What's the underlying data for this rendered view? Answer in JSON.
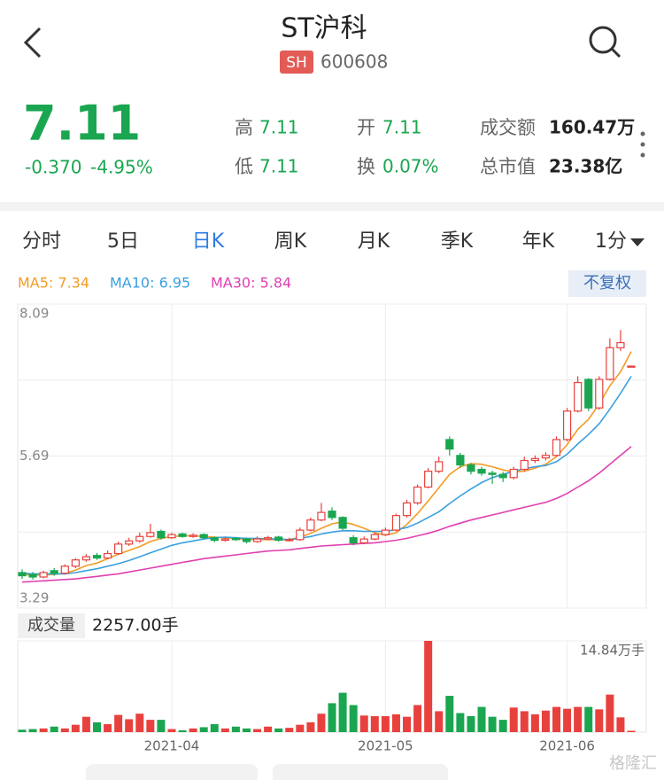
{
  "header": {
    "title": "ST沪科",
    "exchange": "SH",
    "code": "600608"
  },
  "quote": {
    "price": "7.11",
    "change": "-0.370",
    "change_pct": "-4.95%",
    "stats": [
      {
        "label": "高",
        "value": "7.11"
      },
      {
        "label": "开",
        "value": "7.11"
      },
      {
        "label": "成交额",
        "value": "160.47万"
      },
      {
        "label": "低",
        "value": "7.11"
      },
      {
        "label": "换",
        "value": "0.07%"
      },
      {
        "label": "总市值",
        "value": "23.38亿"
      }
    ]
  },
  "tabs": [
    "分时",
    "5日",
    "日K",
    "周K",
    "月K",
    "季K",
    "年K",
    "1分"
  ],
  "adjust": "不复权",
  "volume_label": "成交量",
  "volume_value": "2257.00手",
  "watermark": "格隆汇",
  "chart_data": [
    {
      "type": "candlestick",
      "categories": [
        null,
        null,
        null,
        null,
        null,
        null,
        null,
        null,
        null,
        null,
        null,
        null,
        null,
        null,
        "2021-04",
        null,
        null,
        null,
        null,
        null,
        null,
        null,
        null,
        null,
        null,
        null,
        null,
        null,
        null,
        null,
        null,
        null,
        null,
        null,
        "2021-05",
        null,
        null,
        null,
        null,
        null,
        null,
        null,
        null,
        null,
        null,
        null,
        null,
        null,
        null,
        null,
        null,
        "2021-06",
        null,
        null,
        null,
        null,
        null,
        null
      ],
      "open": [
        3.85,
        3.82,
        3.78,
        3.88,
        3.84,
        3.95,
        4.05,
        4.12,
        4.08,
        4.15,
        4.3,
        4.35,
        4.42,
        4.5,
        4.4,
        4.46,
        4.42,
        4.45,
        4.4,
        4.36,
        4.39,
        4.38,
        4.34,
        4.38,
        4.41,
        4.36,
        4.37,
        4.52,
        4.68,
        4.82,
        4.72,
        4.4,
        4.32,
        4.38,
        4.45,
        4.52,
        4.75,
        4.95,
        5.2,
        5.45,
        5.95,
        5.7,
        5.55,
        5.48,
        5.42,
        5.4,
        5.35,
        5.48,
        5.62,
        5.66,
        5.7,
        5.95,
        6.4,
        6.9,
        6.45,
        6.9,
        7.4,
        7.11
      ],
      "high": [
        3.9,
        3.86,
        3.88,
        3.92,
        3.98,
        4.08,
        4.14,
        4.16,
        4.2,
        4.34,
        4.4,
        4.48,
        4.62,
        4.53,
        4.48,
        4.48,
        4.47,
        4.47,
        4.42,
        4.41,
        4.41,
        4.4,
        4.42,
        4.43,
        4.43,
        4.4,
        4.56,
        4.72,
        4.95,
        4.88,
        4.74,
        4.44,
        4.42,
        4.48,
        4.56,
        4.78,
        5.0,
        5.24,
        5.5,
        5.68,
        6.0,
        5.74,
        5.58,
        5.52,
        5.46,
        5.44,
        5.52,
        5.68,
        5.7,
        5.75,
        6.0,
        6.45,
        6.95,
        6.92,
        6.95,
        7.55,
        7.68,
        7.11
      ],
      "low": [
        3.75,
        3.74,
        3.76,
        3.8,
        3.82,
        3.92,
        4.02,
        4.05,
        4.06,
        4.13,
        4.27,
        4.32,
        4.4,
        4.37,
        4.38,
        4.4,
        4.4,
        4.37,
        4.33,
        4.34,
        4.35,
        4.31,
        4.32,
        4.36,
        4.34,
        4.34,
        4.35,
        4.5,
        4.66,
        4.68,
        4.52,
        4.28,
        4.3,
        4.36,
        4.43,
        4.5,
        4.72,
        4.92,
        5.18,
        5.42,
        5.7,
        5.5,
        5.4,
        5.38,
        5.25,
        5.28,
        5.32,
        5.45,
        5.58,
        5.62,
        5.68,
        5.92,
        6.38,
        6.4,
        6.42,
        6.88,
        7.35,
        7.11
      ],
      "close": [
        3.8,
        3.78,
        3.85,
        3.84,
        3.95,
        4.05,
        4.1,
        4.08,
        4.15,
        4.3,
        4.35,
        4.42,
        4.48,
        4.4,
        4.45,
        4.42,
        4.44,
        4.4,
        4.36,
        4.38,
        4.37,
        4.34,
        4.38,
        4.4,
        4.36,
        4.37,
        4.52,
        4.68,
        4.8,
        4.72,
        4.55,
        4.32,
        4.38,
        4.45,
        4.52,
        4.75,
        4.95,
        5.2,
        5.45,
        5.6,
        5.8,
        5.55,
        5.45,
        5.42,
        5.4,
        5.35,
        5.48,
        5.62,
        5.65,
        5.7,
        5.95,
        6.4,
        6.85,
        6.45,
        6.9,
        7.4,
        7.48,
        7.11
      ],
      "up_color": "#e8413d",
      "down_color": "#1aa650",
      "ylim": [
        3.29,
        8.09
      ],
      "yticks": [
        8.09,
        5.69,
        3.29
      ],
      "legend": [
        "MA5: 7.34",
        "MA10: 6.95",
        "MA30: 5.84"
      ],
      "lines": [
        {
          "color": "#f39c26",
          "values": [
            3.82,
            3.81,
            3.81,
            3.82,
            3.84,
            3.89,
            3.96,
            4.0,
            4.07,
            4.14,
            4.2,
            4.26,
            4.34,
            4.39,
            4.42,
            4.43,
            4.43,
            4.42,
            4.41,
            4.4,
            4.39,
            4.37,
            4.37,
            4.37,
            4.37,
            4.37,
            4.41,
            4.47,
            4.55,
            4.62,
            4.65,
            4.61,
            4.55,
            4.48,
            4.44,
            4.48,
            4.61,
            4.78,
            4.98,
            5.19,
            5.4,
            5.52,
            5.57,
            5.56,
            5.52,
            5.47,
            5.44,
            5.45,
            5.5,
            5.56,
            5.68,
            5.87,
            6.11,
            6.27,
            6.51,
            6.8,
            7.02,
            7.34
          ]
        },
        {
          "color": "#3aa0e0",
          "values": [
            3.84,
            3.83,
            3.83,
            3.83,
            3.83,
            3.85,
            3.88,
            3.91,
            3.95,
            3.99,
            4.04,
            4.1,
            4.16,
            4.22,
            4.28,
            4.32,
            4.35,
            4.38,
            4.4,
            4.41,
            4.4,
            4.39,
            4.39,
            4.38,
            4.38,
            4.37,
            4.39,
            4.42,
            4.46,
            4.49,
            4.51,
            4.51,
            4.5,
            4.5,
            4.5,
            4.53,
            4.56,
            4.63,
            4.72,
            4.81,
            4.94,
            5.06,
            5.17,
            5.27,
            5.35,
            5.4,
            5.45,
            5.49,
            5.52,
            5.54,
            5.6,
            5.72,
            5.88,
            6.03,
            6.2,
            6.43,
            6.68,
            6.95
          ]
        },
        {
          "color": "#e040b0",
          "values": [
            3.7,
            3.71,
            3.72,
            3.73,
            3.74,
            3.75,
            3.77,
            3.79,
            3.81,
            3.83,
            3.86,
            3.89,
            3.92,
            3.95,
            3.98,
            4.01,
            4.04,
            4.07,
            4.09,
            4.11,
            4.13,
            4.15,
            4.17,
            4.19,
            4.2,
            4.21,
            4.23,
            4.25,
            4.27,
            4.28,
            4.29,
            4.3,
            4.31,
            4.32,
            4.34,
            4.36,
            4.39,
            4.43,
            4.47,
            4.52,
            4.58,
            4.63,
            4.68,
            4.72,
            4.76,
            4.8,
            4.84,
            4.88,
            4.92,
            4.96,
            5.02,
            5.1,
            5.2,
            5.3,
            5.42,
            5.56,
            5.7,
            5.84
          ]
        }
      ]
    },
    {
      "type": "bar",
      "values": [
        0.4,
        0.5,
        0.6,
        0.9,
        0.6,
        1.2,
        2.5,
        1.6,
        1.3,
        2.8,
        2.1,
        3.0,
        2.0,
        2.0,
        0.5,
        0.3,
        0.6,
        0.8,
        1.3,
        0.6,
        0.9,
        0.6,
        0.5,
        0.9,
        0.6,
        0.7,
        1.2,
        1.6,
        3.0,
        4.7,
        6.4,
        4.4,
        2.7,
        2.6,
        2.6,
        2.9,
        2.5,
        4.4,
        14.84,
        3.4,
        5.9,
        3.1,
        2.6,
        4.1,
        2.5,
        2.0,
        4.0,
        3.4,
        2.9,
        3.5,
        4.1,
        3.8,
        4.1,
        4.1,
        3.7,
        6.1,
        2.4,
        0.2257
      ],
      "ylim": [
        0,
        14.84
      ],
      "yticks": [
        {
          "value": 14.84,
          "label": "14.84万手"
        }
      ]
    }
  ]
}
